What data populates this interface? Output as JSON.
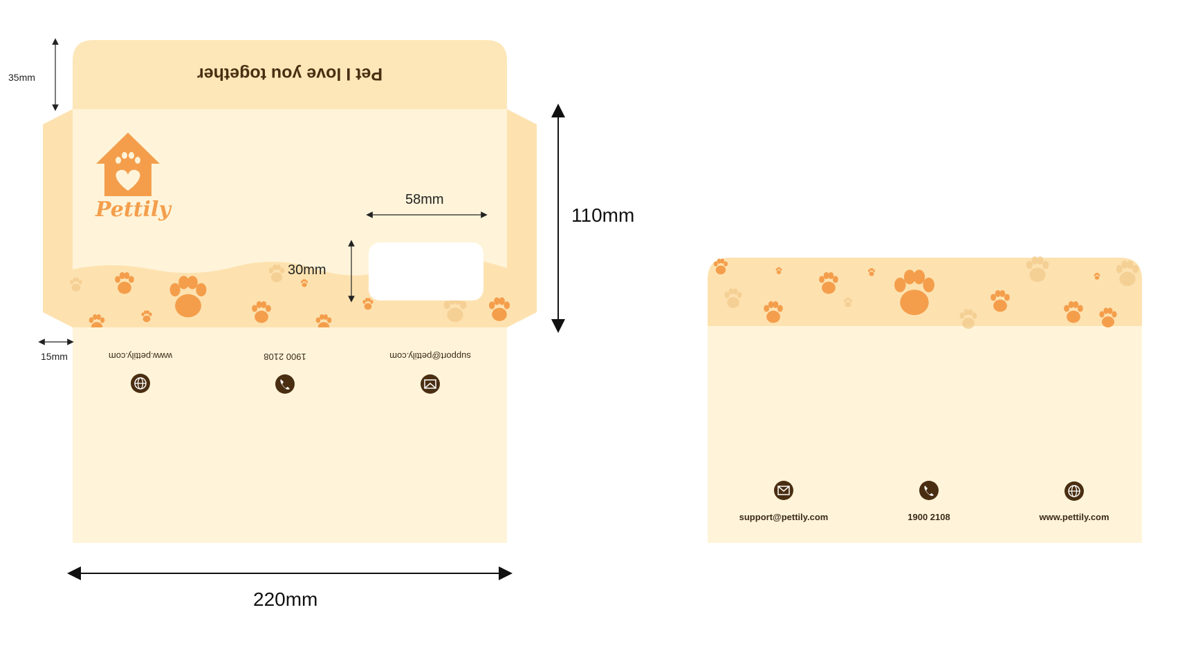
{
  "colors": {
    "cream": "#fff4d9",
    "flap": "#fde7b8",
    "side_flap": "#fde2b0",
    "accent": "#f49e4c",
    "dark": "#4a2e12"
  },
  "dimensions": {
    "top_flap_height": "35mm",
    "side_flap_width": "15mm",
    "window_width": "58mm",
    "window_height": "30mm",
    "height": "110mm",
    "width": "220mm"
  },
  "dieline": {
    "flap_title": "Pet I love you together",
    "brand_name": "Pettily",
    "contacts": [
      {
        "icon": "globe-icon",
        "text": "www.pettily.com"
      },
      {
        "icon": "phone-icon",
        "text": "1900 2108"
      },
      {
        "icon": "mail-icon",
        "text": "support@pettily.com"
      }
    ]
  },
  "back_view": {
    "contacts": [
      {
        "icon": "mail-icon",
        "text": "support@pettily.com"
      },
      {
        "icon": "phone-icon",
        "text": "1900 2108"
      },
      {
        "icon": "globe-icon",
        "text": "www.pettily.com"
      }
    ]
  }
}
